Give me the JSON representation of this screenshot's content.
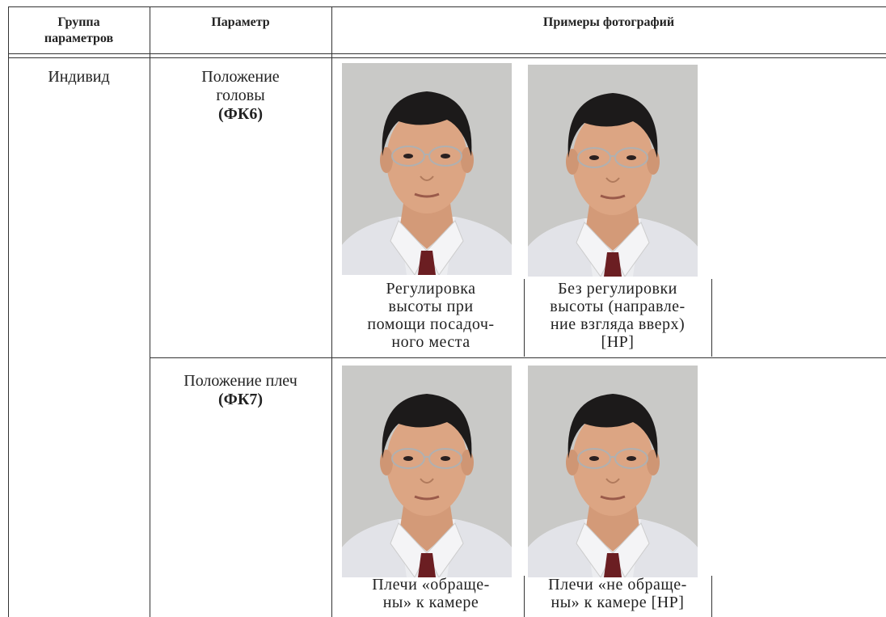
{
  "header": {
    "group": [
      "Группа",
      "параметров"
    ],
    "parameter": "Параметр",
    "examples": "Примеры фотографий"
  },
  "rows": [
    {
      "group": "Индивид",
      "parameter": [
        "Положение",
        "головы"
      ],
      "code": "(ФК6)",
      "captions": [
        [
          "Регулировка",
          "высоты при",
          "помощи посадоч-",
          "ного места"
        ],
        [
          "Без регулировки",
          "высоты (направле-",
          "ние взгляда вверх)",
          "[НР]"
        ]
      ]
    },
    {
      "parameter": [
        "Положение плеч"
      ],
      "code": "(ФК7)",
      "captions": [
        [
          "Плечи «обраще-",
          "ны» к камере"
        ],
        [
          "Плечи «не обраще-",
          "ны» к камере [НР]"
        ]
      ]
    }
  ]
}
